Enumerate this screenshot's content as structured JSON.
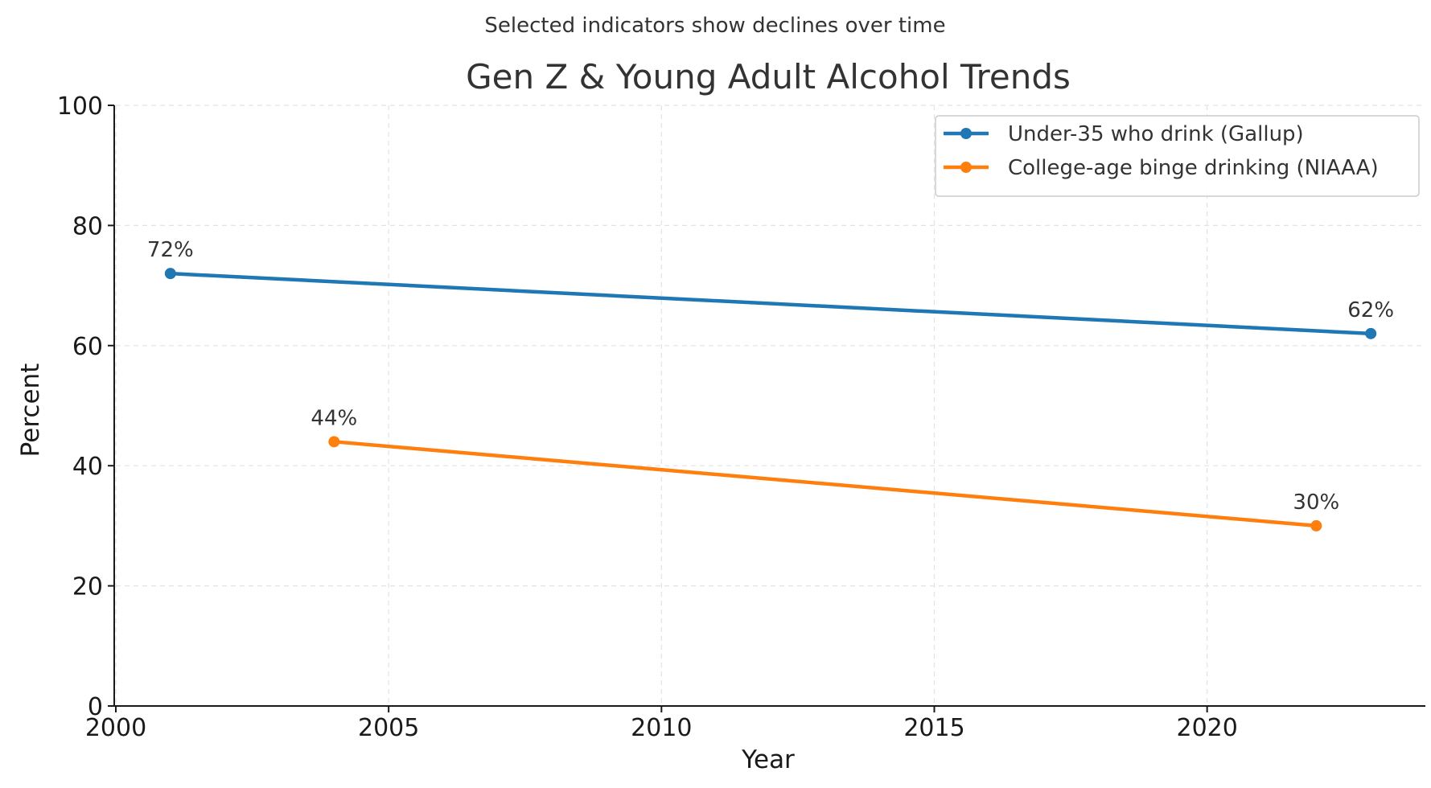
{
  "chart_data": {
    "type": "line",
    "subtitle": "Selected indicators show declines over time",
    "title": "Gen Z & Young Adult Alcohol Trends",
    "xlabel": "Year",
    "ylabel": "Percent",
    "xlim": [
      2000,
      2024
    ],
    "ylim": [
      0,
      100
    ],
    "x_ticks": [
      2000,
      2005,
      2010,
      2015,
      2020
    ],
    "y_ticks": [
      0,
      20,
      40,
      60,
      80,
      100
    ],
    "grid": true,
    "legend_position": "top-right",
    "series": [
      {
        "name": "Under-35 who drink (Gallup)",
        "color": "#1f77b4",
        "points": [
          {
            "x": 2001,
            "y": 72,
            "label": "72%"
          },
          {
            "x": 2023,
            "y": 62,
            "label": "62%"
          }
        ]
      },
      {
        "name": "College-age binge drinking (NIAAA)",
        "color": "#ff7f0e",
        "points": [
          {
            "x": 2004,
            "y": 44,
            "label": "44%"
          },
          {
            "x": 2022,
            "y": 30,
            "label": "30%"
          }
        ]
      }
    ]
  }
}
